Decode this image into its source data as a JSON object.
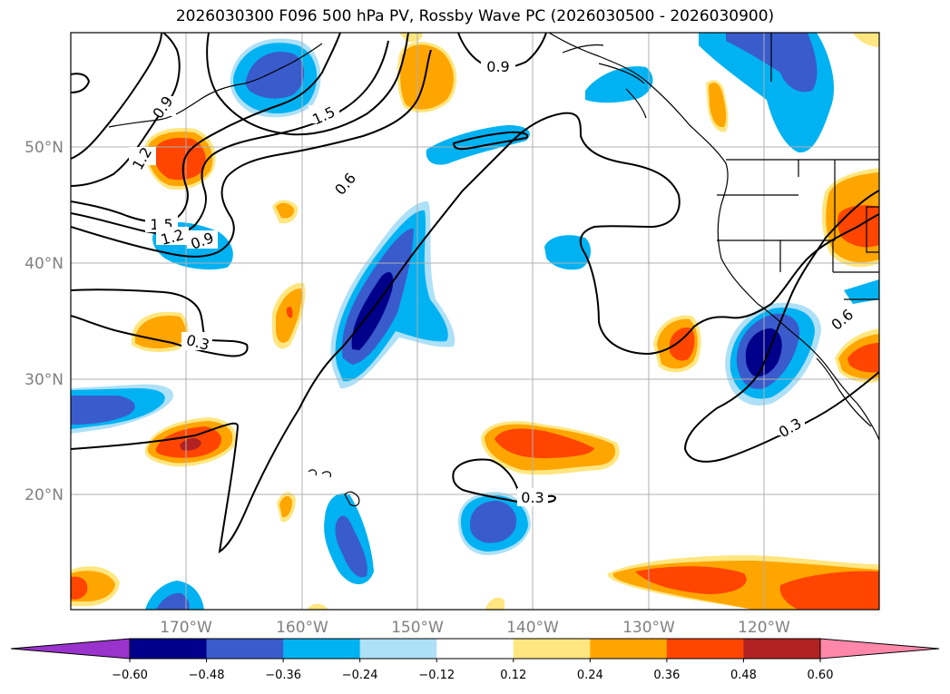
{
  "title": "2026030300 F096 500 hPa PV, Rossby Wave PC (2026030500 - 2026030900)",
  "lat_labels": [
    "50°N",
    "40°N",
    "30°N",
    "20°N"
  ],
  "lon_labels": [
    "170°W",
    "160°W",
    "150°W",
    "140°W",
    "130°W",
    "120°W"
  ],
  "contour_labels": [
    "0.9",
    "1.5",
    "1.2",
    "1.5",
    "1.2",
    "0.9",
    "0.6",
    "0.9",
    "0.3",
    "0.6",
    "0.3",
    "0.3"
  ],
  "colorbar": {
    "ticks": [
      "−0.60",
      "−0.48",
      "−0.36",
      "−0.24",
      "−0.12",
      "0.12",
      "0.24",
      "0.36",
      "0.48",
      "0.60"
    ],
    "colors": [
      "#9933cc",
      "#00008b",
      "#3a5bcc",
      "#00b2f2",
      "#aee0f7",
      "#ffffff",
      "#ffe680",
      "#ffa500",
      "#ff4500",
      "#b22222",
      "#ff88aa"
    ]
  },
  "colors": {
    "neg_strong": "#00008b",
    "neg_mid": "#3a5bcc",
    "neg_weak": "#00b2f2",
    "neg_faint": "#aee0f7",
    "pos_faint": "#ffe680",
    "pos_weak": "#ffa500",
    "pos_mid": "#ff4500",
    "pos_strong": "#b22222"
  }
}
